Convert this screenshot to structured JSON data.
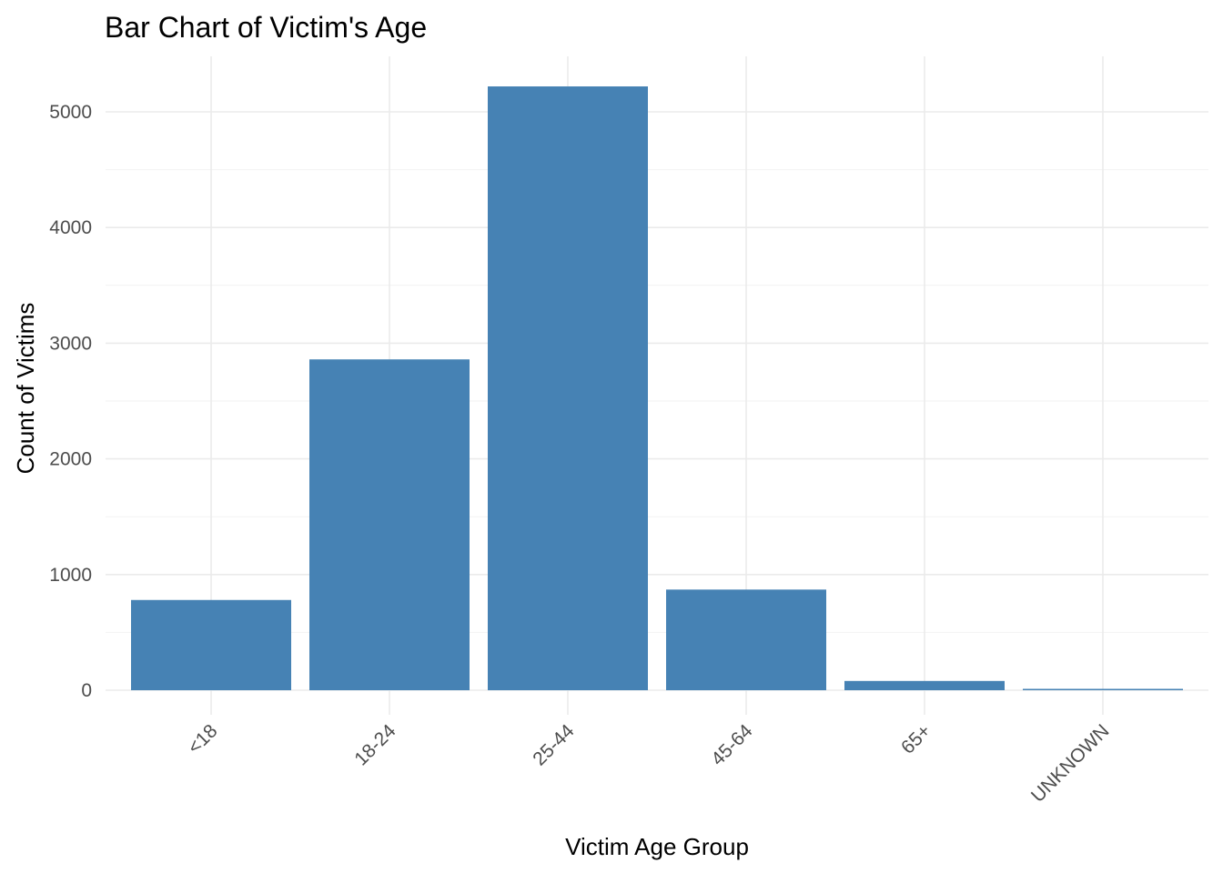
{
  "chart_data": {
    "type": "bar",
    "title": "Bar Chart of Victim's Age",
    "xlabel": "Victim Age Group",
    "ylabel": "Count of Victims",
    "categories": [
      "<18",
      "18-24",
      "25-44",
      "45-64",
      "65+",
      "UNKNOWN"
    ],
    "values": [
      780,
      2860,
      5220,
      870,
      80,
      10
    ],
    "ylim": [
      0,
      5220
    ],
    "yticks": [
      0,
      1000,
      2000,
      3000,
      4000,
      5000
    ],
    "grid": true,
    "legend": "none",
    "bar_color": "#4682B4"
  }
}
